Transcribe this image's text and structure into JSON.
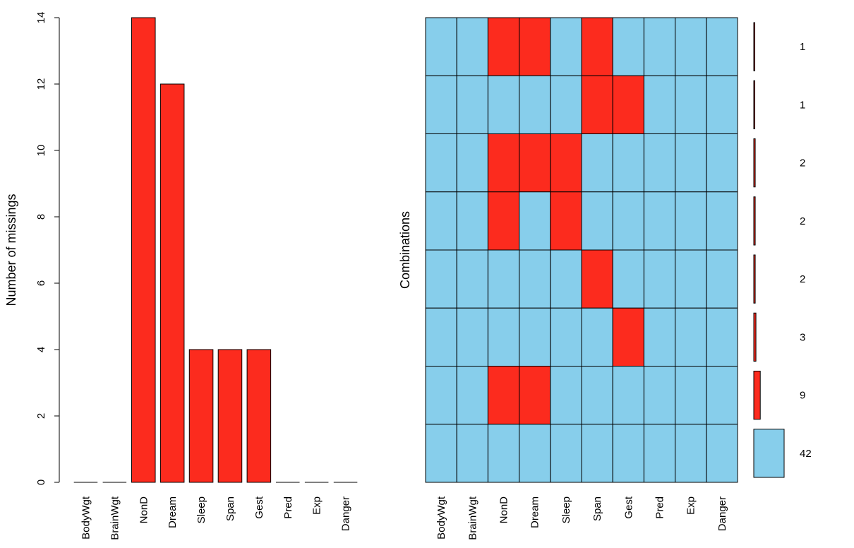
{
  "chart_data": [
    {
      "type": "bar",
      "ylabel": "Number of missings",
      "ylim": [
        0,
        14
      ],
      "yticks": [
        0,
        2,
        4,
        6,
        8,
        10,
        12,
        14
      ],
      "categories": [
        "BodyWgt",
        "BrainWgt",
        "NonD",
        "Dream",
        "Sleep",
        "Span",
        "Gest",
        "Pred",
        "Exp",
        "Danger"
      ],
      "values": [
        0,
        0,
        14,
        12,
        4,
        4,
        4,
        0,
        0,
        0
      ]
    },
    {
      "type": "heatmap",
      "ylabel": "Combinations",
      "variables": [
        "BodyWgt",
        "BrainWgt",
        "NonD",
        "Dream",
        "Sleep",
        "Span",
        "Gest",
        "Pred",
        "Exp",
        "Danger"
      ],
      "combinations": [
        {
          "pattern": [
            0,
            0,
            1,
            1,
            0,
            1,
            0,
            0,
            0,
            0
          ],
          "count": 1
        },
        {
          "pattern": [
            0,
            0,
            0,
            0,
            0,
            1,
            1,
            0,
            0,
            0
          ],
          "count": 1
        },
        {
          "pattern": [
            0,
            0,
            1,
            1,
            1,
            0,
            0,
            0,
            0,
            0
          ],
          "count": 2
        },
        {
          "pattern": [
            0,
            0,
            1,
            0,
            1,
            0,
            0,
            0,
            0,
            0
          ],
          "count": 2
        },
        {
          "pattern": [
            0,
            0,
            0,
            0,
            0,
            1,
            0,
            0,
            0,
            0
          ],
          "count": 2
        },
        {
          "pattern": [
            0,
            0,
            0,
            0,
            0,
            0,
            1,
            0,
            0,
            0
          ],
          "count": 3
        },
        {
          "pattern": [
            0,
            0,
            1,
            1,
            0,
            0,
            0,
            0,
            0,
            0
          ],
          "count": 9
        },
        {
          "pattern": [
            0,
            0,
            0,
            0,
            0,
            0,
            0,
            0,
            0,
            0
          ],
          "count": 42
        }
      ]
    }
  ],
  "colors": {
    "missing": "#fc2b1e",
    "observed": "#87ceeb",
    "stroke": "#000000"
  }
}
